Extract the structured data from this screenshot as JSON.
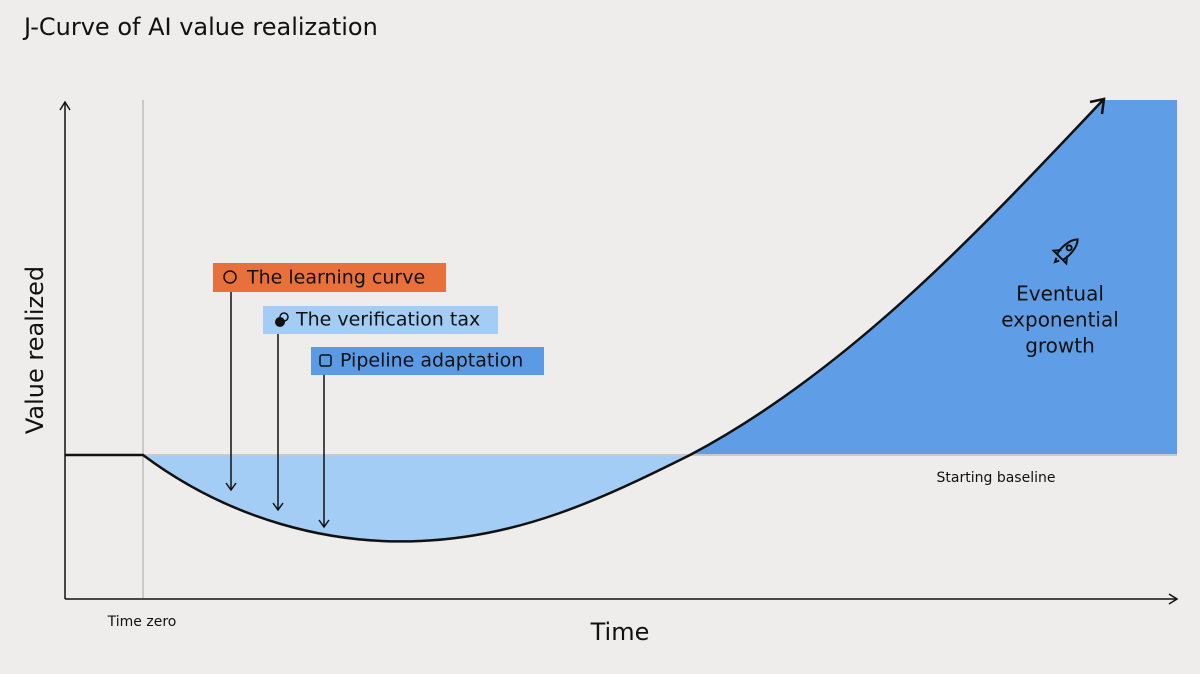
{
  "title": "J-Curve of AI value realization",
  "axes": {
    "y_label": "Value realized",
    "x_label": "Time",
    "time_zero": "Time zero"
  },
  "baseline_label": "Starting baseline",
  "factors": [
    {
      "label": "The learning curve"
    },
    {
      "label": "The verification tax"
    },
    {
      "label": "Pipeline adaptation"
    }
  ],
  "growth_label": [
    "Eventual",
    "exponential",
    "growth"
  ]
}
